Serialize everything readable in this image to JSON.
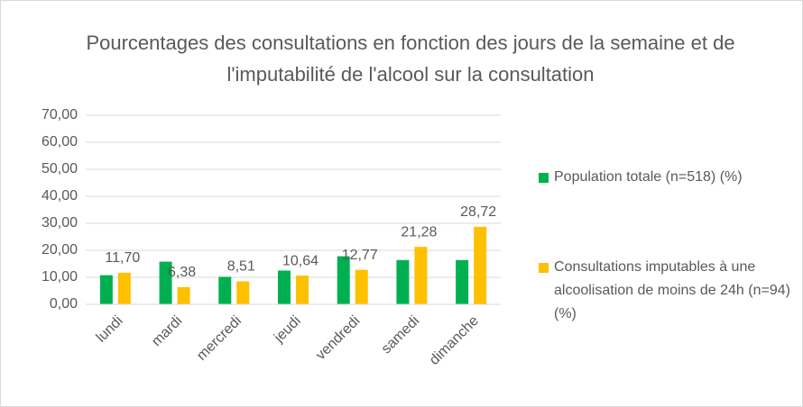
{
  "chart_data": {
    "type": "bar",
    "title": "Pourcentages des consultations en fonction des jours de la semaine et de l'imputabilité de l'alcool sur la consultation",
    "categories": [
      "lundi",
      "mardi",
      "mercredi",
      "jeudi",
      "vendredi",
      "samedi",
      "dimanche"
    ],
    "series": [
      {
        "name": "Population totale (n=518) (%)",
        "color": "#00b050",
        "values": [
          10.8,
          15.8,
          10.2,
          12.5,
          17.8,
          16.4,
          16.4
        ]
      },
      {
        "name": "Consultations imputables à une alcoolisation de moins de 24h (n=94) (%)",
        "color": "#ffc000",
        "values": [
          11.7,
          6.38,
          8.51,
          10.64,
          12.77,
          21.28,
          28.72
        ],
        "value_labels": [
          "11,70",
          "6,38",
          "8,51",
          "10,64",
          "12,77",
          "21,28",
          "28,72"
        ]
      }
    ],
    "ylim": [
      0,
      70
    ],
    "yticks": [
      {
        "value": 0,
        "label": "0,00"
      },
      {
        "value": 10,
        "label": "10,00"
      },
      {
        "value": 20,
        "label": "20,00"
      },
      {
        "value": 30,
        "label": "30,00"
      },
      {
        "value": 40,
        "label": "40,00"
      },
      {
        "value": 50,
        "label": "50,00"
      },
      {
        "value": 60,
        "label": "60,00"
      },
      {
        "value": 70,
        "label": "70,00"
      }
    ],
    "grid": true,
    "legend": "right"
  }
}
